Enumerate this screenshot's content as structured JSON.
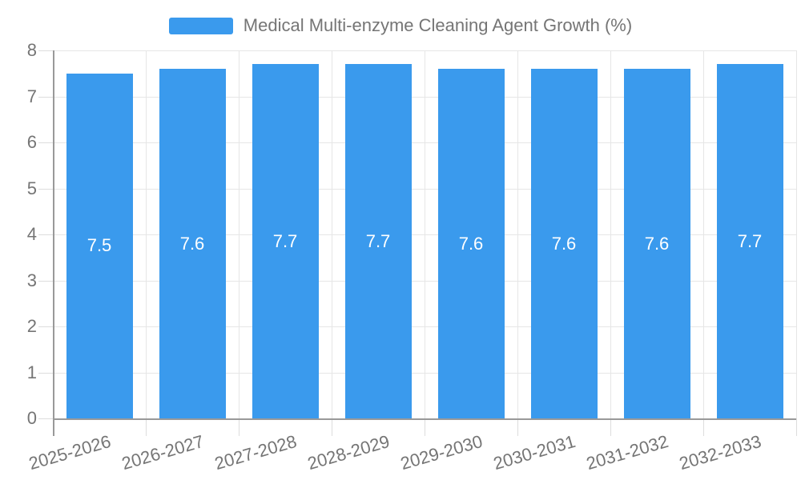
{
  "chart_data": {
    "type": "bar",
    "title": "Medical Multi-enzyme Cleaning Agent Growth (%)",
    "xlabel": "",
    "ylabel": "",
    "categories": [
      "2025-2026",
      "2026-2027",
      "2027-2028",
      "2028-2029",
      "2029-2030",
      "2030-2031",
      "2031-2032",
      "2032-2033"
    ],
    "values": [
      7.5,
      7.6,
      7.7,
      7.7,
      7.6,
      7.6,
      7.6,
      7.7
    ],
    "bar_labels": [
      "7.5",
      "7.6",
      "7.7",
      "7.7",
      "7.6",
      "7.6",
      "7.6",
      "7.7"
    ],
    "ylim": [
      0,
      8
    ],
    "y_ticks": [
      0,
      1,
      2,
      3,
      4,
      5,
      6,
      7,
      8
    ],
    "grid": "on",
    "legend_position": "top-center",
    "x_label_rotation_deg": -16,
    "colors": {
      "bar": "#3A9AED",
      "bar_label": "#FFFFFF",
      "text": "#757575",
      "grid_line": "#E6E6E6",
      "tick_line": "#DDDDDD",
      "axis_line": "#999999",
      "background": "#FFFFFF"
    }
  }
}
